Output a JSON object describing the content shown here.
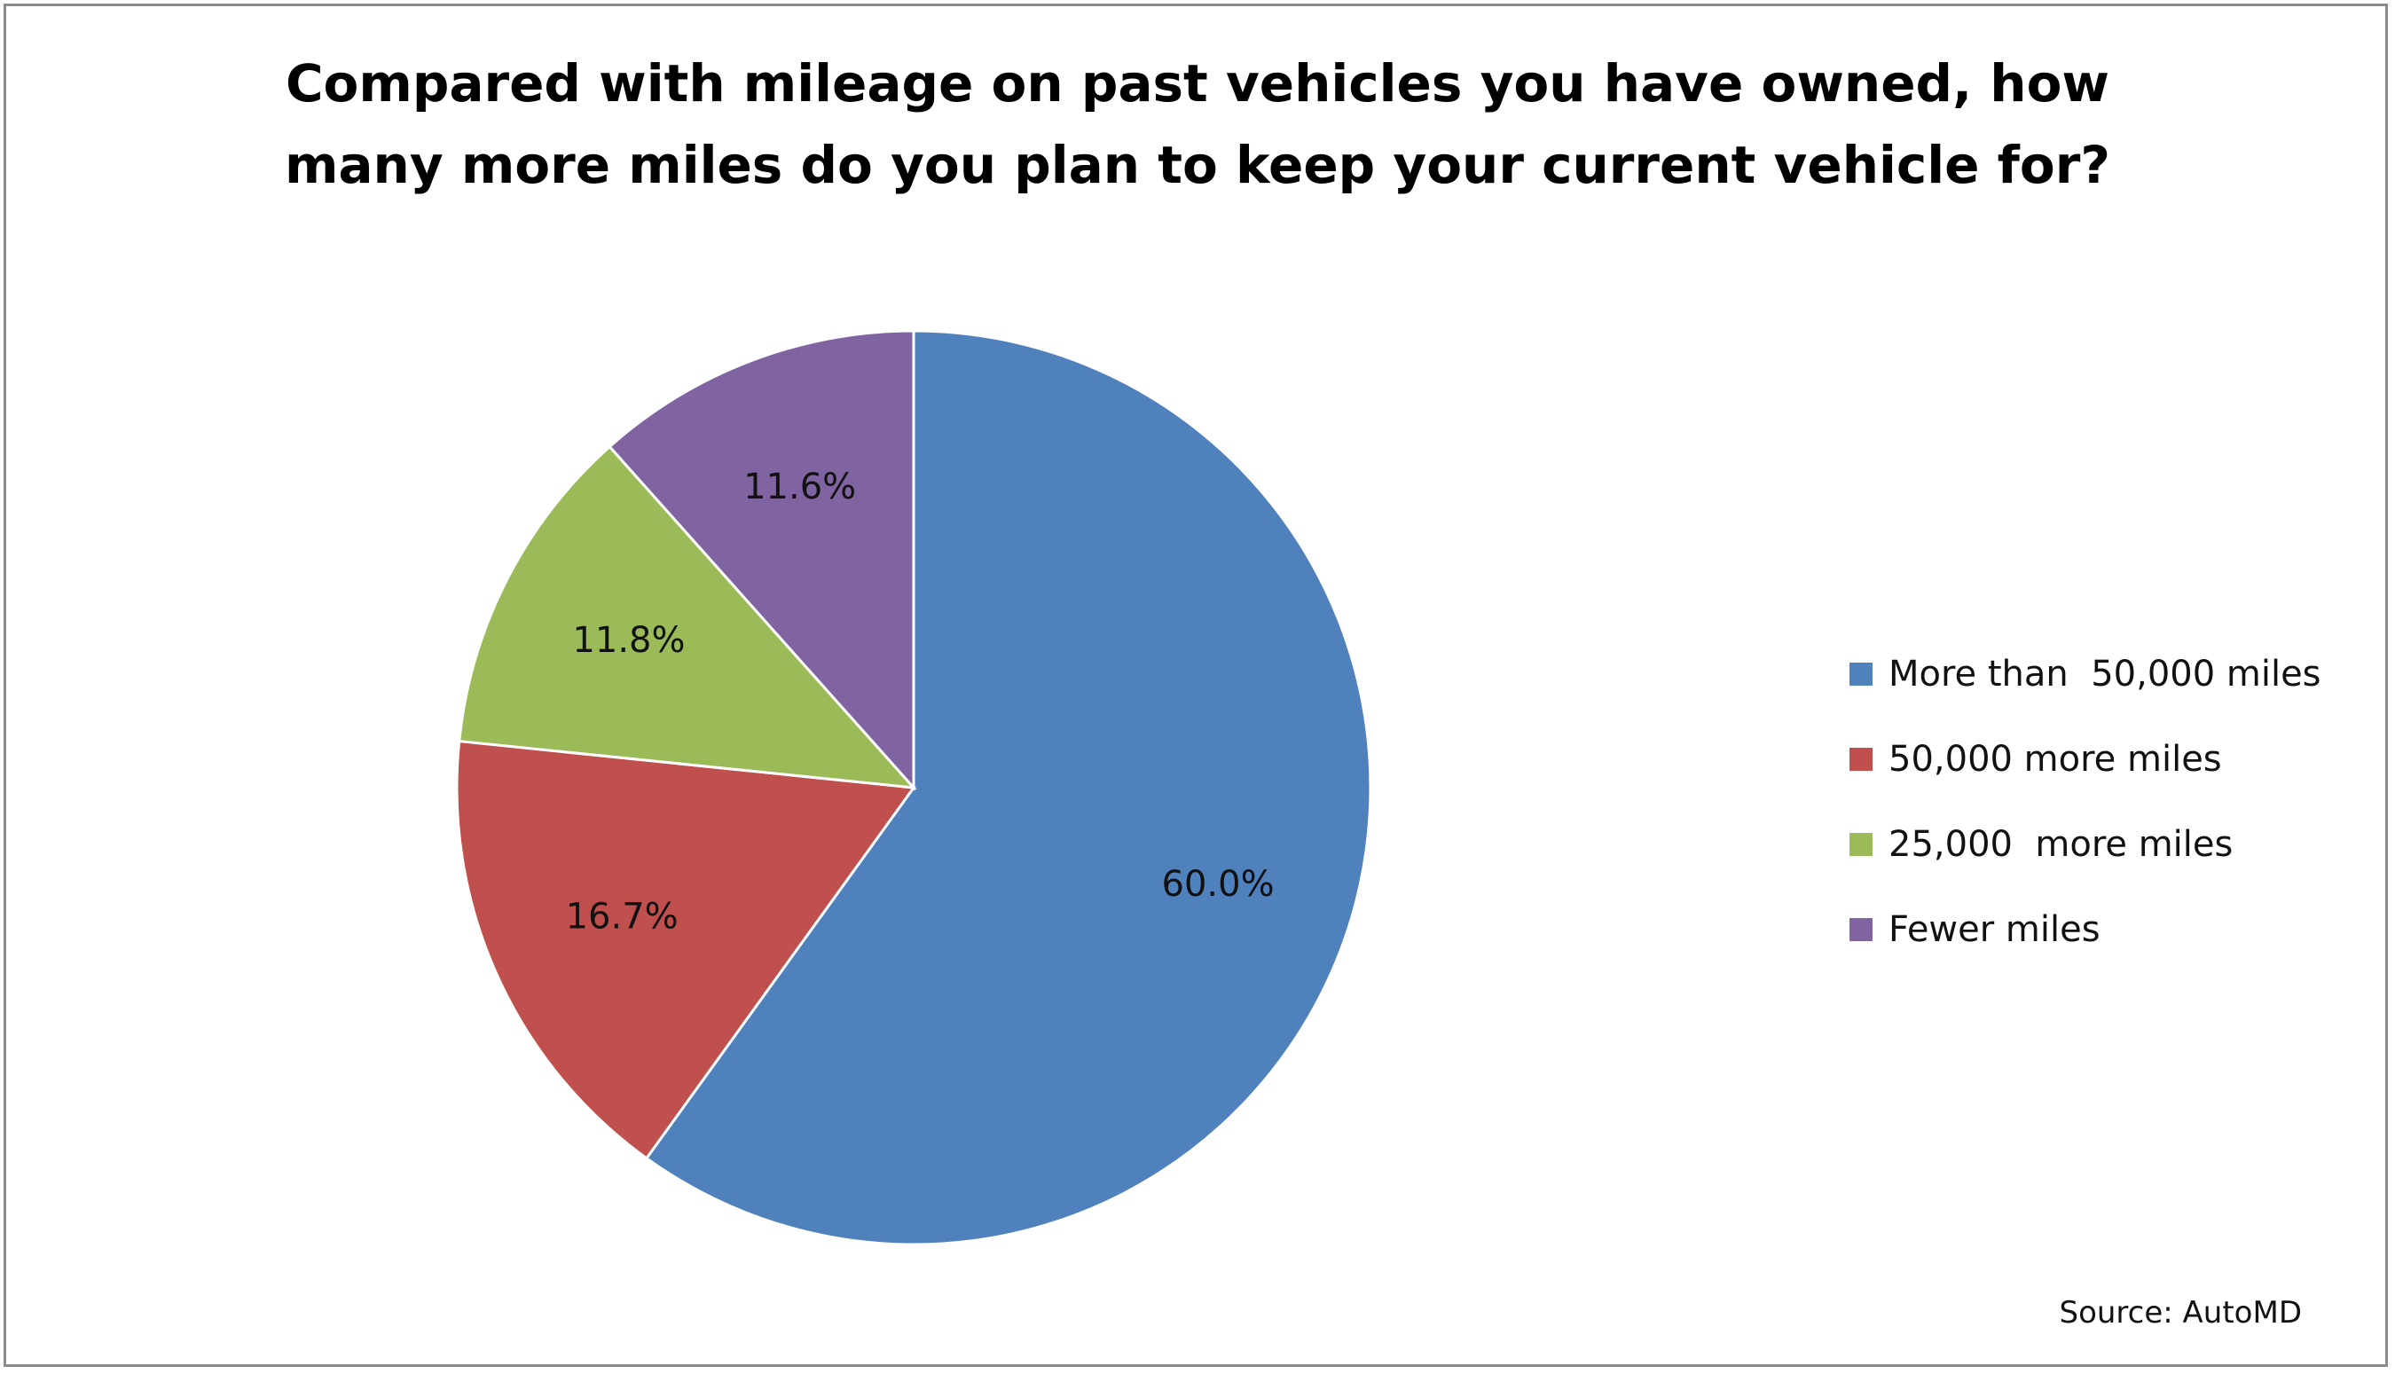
{
  "chart_data": {
    "type": "pie",
    "title_lines": [
      "Compared with mileage on past vehicles you have owned, how",
      "many more miles do you plan to keep your current vehicle for?"
    ],
    "categories": [
      "More than  50,000 miles",
      "50,000 more miles",
      "25,000  more miles",
      "Fewer miles"
    ],
    "values": [
      60.0,
      16.7,
      11.8,
      11.6
    ],
    "data_labels": [
      "60.0%",
      "16.7%",
      "11.8%",
      "11.6%"
    ],
    "colors": [
      "#4f81bd",
      "#c0504d",
      "#9bbb59",
      "#8064a2"
    ],
    "legend_position": "right"
  },
  "source": "Source: AutoMD"
}
